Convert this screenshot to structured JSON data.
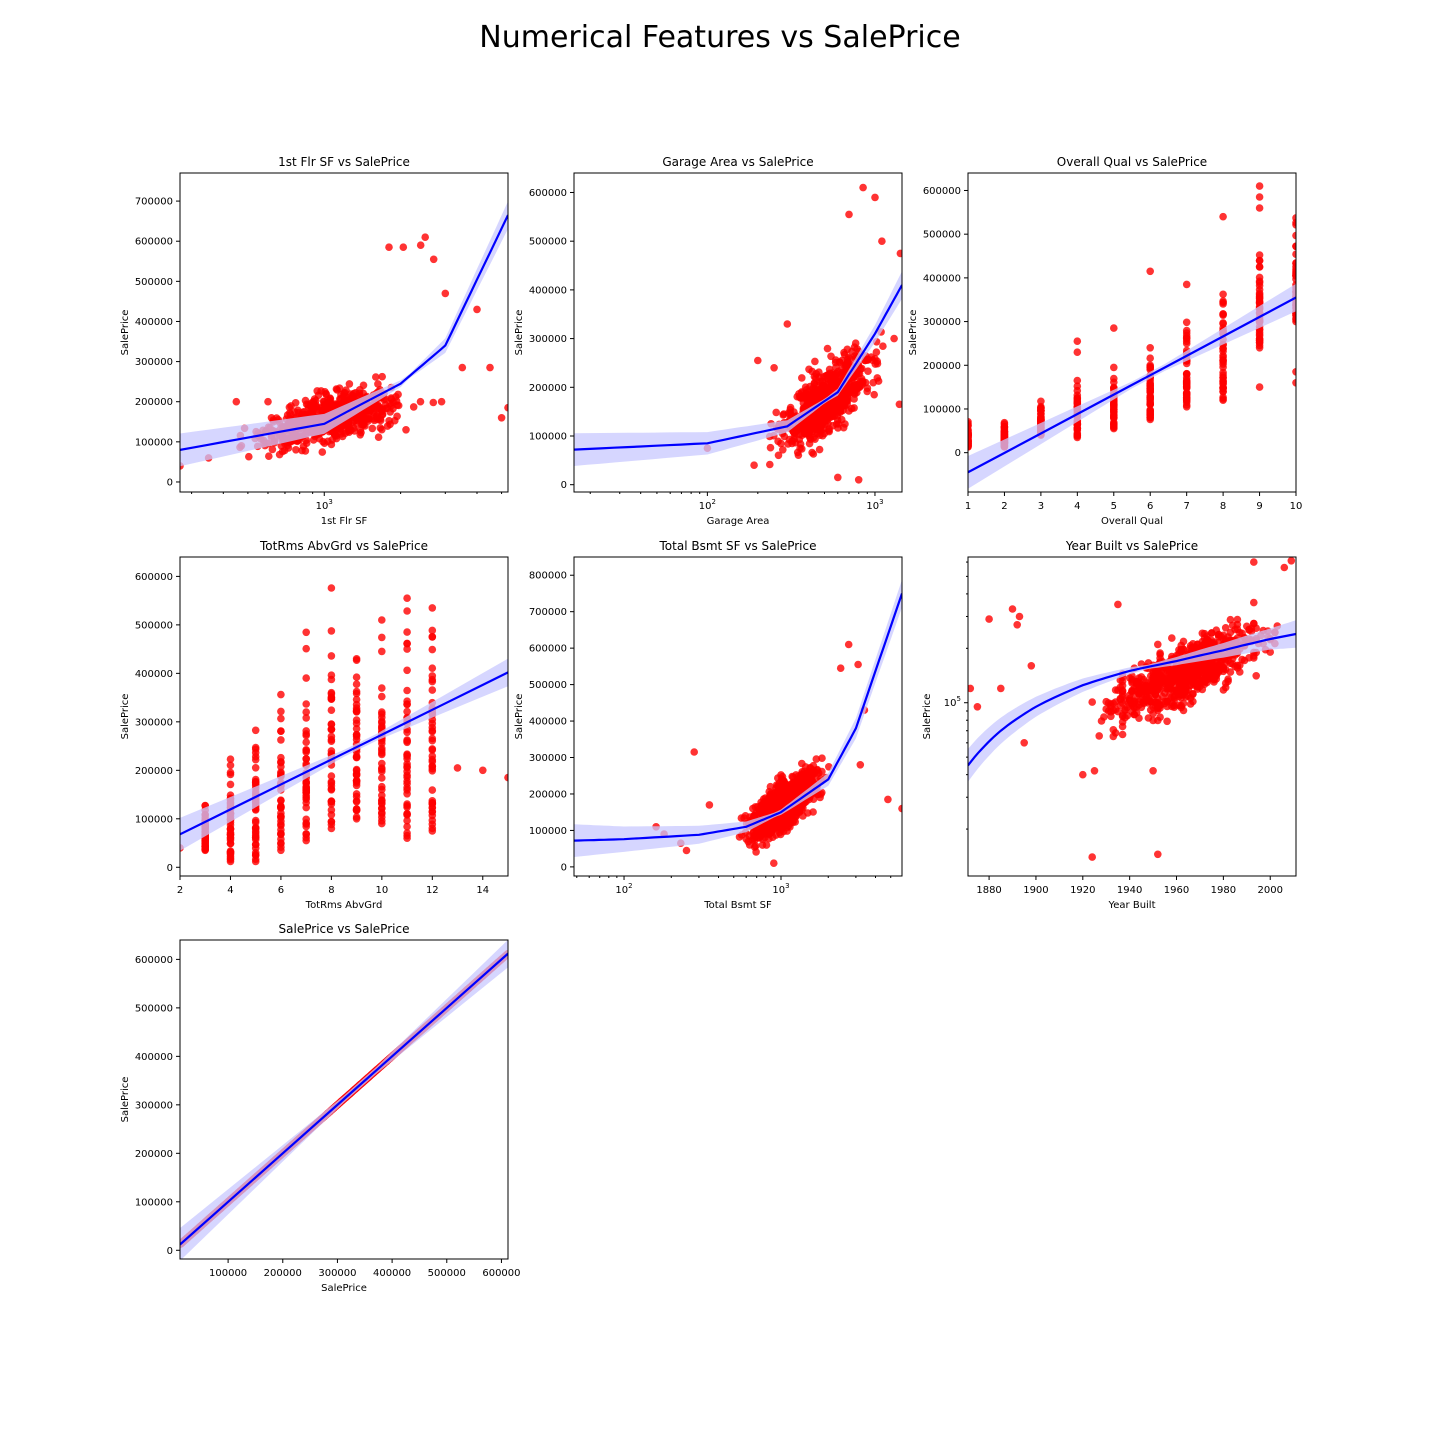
{
  "figure": {
    "title": "Numerical Features vs SalePrice"
  },
  "style": {
    "point_color": "#ff0000",
    "line_color": "#0000ff",
    "band_color": "#c8c8ff"
  },
  "chart_data": [
    {
      "type": "scatter",
      "title": "1st Flr SF vs SalePrice",
      "xlabel": "1st Flr SF",
      "ylabel": "SalePrice",
      "xscale": "log",
      "xlim": [
        270,
        5300
      ],
      "yscale": "linear",
      "ylim": [
        -25000,
        770000
      ],
      "xticks": [
        {
          "v": 1000,
          "label": "10",
          "exp": "3"
        }
      ],
      "yticks": [
        0,
        100000,
        200000,
        300000,
        400000,
        500000,
        600000,
        700000
      ],
      "regression": "exponential",
      "fit": [
        [
          270,
          80000
        ],
        [
          1000,
          145000
        ],
        [
          2000,
          245000
        ],
        [
          3000,
          340000
        ],
        [
          5300,
          665000
        ]
      ],
      "cloud": {
        "center": [
          1050,
          160000
        ],
        "spread": [
          0.22,
          45000
        ],
        "n": 700,
        "slope": 80000
      },
      "points": [
        [
          270,
          40000
        ],
        [
          5000,
          160000
        ],
        [
          5300,
          185000
        ],
        [
          4500,
          285000
        ],
        [
          3500,
          285000
        ],
        [
          2500,
          610000
        ],
        [
          2400,
          590000
        ],
        [
          2050,
          585000
        ],
        [
          1800,
          585000
        ],
        [
          2700,
          555000
        ],
        [
          3000,
          470000
        ],
        [
          4000,
          430000
        ],
        [
          600,
          200000
        ],
        [
          450,
          200000
        ],
        [
          350,
          60000
        ],
        [
          2900,
          200000
        ],
        [
          2100,
          130000
        ]
      ]
    },
    {
      "type": "scatter",
      "title": "Garage Area vs SalePrice",
      "xlabel": "Garage Area",
      "ylabel": "SalePrice",
      "xscale": "log",
      "xlim": [
        16,
        1450
      ],
      "yscale": "linear",
      "ylim": [
        -15000,
        640000
      ],
      "xticks": [
        {
          "v": 100,
          "label": "10",
          "exp": "2"
        },
        {
          "v": 1000,
          "label": "10",
          "exp": "3"
        }
      ],
      "yticks": [
        0,
        100000,
        200000,
        300000,
        400000,
        500000,
        600000
      ],
      "regression": "exponential",
      "fit": [
        [
          16,
          72000
        ],
        [
          100,
          85000
        ],
        [
          300,
          120000
        ],
        [
          600,
          190000
        ],
        [
          1000,
          310000
        ],
        [
          1450,
          410000
        ]
      ],
      "cloud": {
        "center": [
          520,
          175000
        ],
        "spread": [
          0.22,
          55000
        ],
        "n": 700,
        "slope": 120000
      },
      "points": [
        [
          100,
          75000
        ],
        [
          200,
          255000
        ],
        [
          250,
          240000
        ],
        [
          300,
          330000
        ],
        [
          850,
          610000
        ],
        [
          700,
          555000
        ],
        [
          1000,
          590000
        ],
        [
          1100,
          500000
        ],
        [
          1418,
          475000
        ],
        [
          1400,
          165000
        ],
        [
          1300,
          300000
        ],
        [
          800,
          10000
        ],
        [
          600,
          15000
        ],
        [
          190,
          40000
        ],
        [
          240,
          125000
        ]
      ]
    },
    {
      "type": "scatter",
      "title": "Overall Qual vs SalePrice",
      "xlabel": "Overall Qual",
      "ylabel": "SalePrice",
      "xscale": "linear",
      "xlim": [
        1,
        10
      ],
      "yscale": "linear",
      "ylim": [
        -90000,
        640000
      ],
      "xticks": [
        1,
        2,
        3,
        4,
        5,
        6,
        7,
        8,
        9,
        10
      ],
      "yticks": [
        0,
        100000,
        200000,
        300000,
        400000,
        500000,
        600000
      ],
      "regression": "linear",
      "fit": [
        [
          1,
          -45000
        ],
        [
          10,
          355000
        ]
      ],
      "strips": [
        [
          1,
          13000,
          82000
        ],
        [
          2,
          13000,
          80000
        ],
        [
          3,
          40000,
          140000
        ],
        [
          4,
          35000,
          200000
        ],
        [
          5,
          55000,
          240000
        ],
        [
          6,
          76000,
          290000
        ],
        [
          7,
          105000,
          340000
        ],
        [
          8,
          120000,
          440000
        ],
        [
          9,
          240000,
          500000
        ],
        [
          10,
          300000,
          560000
        ]
      ],
      "points": [
        [
          4,
          230000
        ],
        [
          4,
          255000
        ],
        [
          5,
          285000
        ],
        [
          6,
          415000
        ],
        [
          7,
          385000
        ],
        [
          8,
          540000
        ],
        [
          9,
          150000
        ],
        [
          9,
          560000
        ],
        [
          9,
          585000
        ],
        [
          9,
          610000
        ],
        [
          10,
          160000
        ],
        [
          10,
          185000
        ]
      ]
    },
    {
      "type": "scatter",
      "title": "TotRms AbvGrd vs SalePrice",
      "xlabel": "TotRms AbvGrd",
      "ylabel": "SalePrice",
      "xscale": "linear",
      "xlim": [
        2,
        15
      ],
      "yscale": "linear",
      "ylim": [
        -18000,
        640000
      ],
      "xticks": [
        2,
        4,
        6,
        8,
        10,
        12,
        14
      ],
      "yticks": [
        0,
        100000,
        200000,
        300000,
        400000,
        500000,
        600000
      ],
      "regression": "linear",
      "fit": [
        [
          2,
          68000
        ],
        [
          15,
          402000
        ]
      ],
      "strips": [
        [
          3,
          35000,
          155000
        ],
        [
          4,
          12000,
          270000
        ],
        [
          5,
          12000,
          390000
        ],
        [
          6,
          35000,
          375000
        ],
        [
          7,
          55000,
          500000
        ],
        [
          8,
          80000,
          590000
        ],
        [
          9,
          100000,
          500000
        ],
        [
          10,
          90000,
          555000
        ],
        [
          11,
          60000,
          610000
        ],
        [
          12,
          75000,
          580000
        ]
      ],
      "points": [
        [
          2,
          40000
        ],
        [
          13,
          205000
        ],
        [
          14,
          200000
        ],
        [
          15,
          185000
        ],
        [
          11,
          555000
        ],
        [
          12,
          535000
        ],
        [
          11,
          485000
        ],
        [
          12,
          475000
        ],
        [
          10,
          510000
        ],
        [
          9,
          430000
        ]
      ]
    },
    {
      "type": "scatter",
      "title": "Total Bsmt SF vs SalePrice",
      "xlabel": "Total Bsmt SF",
      "ylabel": "SalePrice",
      "xscale": "log",
      "xlim": [
        48,
        5900
      ],
      "yscale": "linear",
      "ylim": [
        -25000,
        850000
      ],
      "xticks": [
        {
          "v": 100,
          "label": "10",
          "exp": "2"
        },
        {
          "v": 1000,
          "label": "10",
          "exp": "3"
        }
      ],
      "yticks": [
        0,
        100000,
        200000,
        300000,
        400000,
        500000,
        600000,
        700000,
        800000
      ],
      "regression": "exponential",
      "fit": [
        [
          48,
          72000
        ],
        [
          100,
          76000
        ],
        [
          300,
          88000
        ],
        [
          600,
          110000
        ],
        [
          1000,
          150000
        ],
        [
          2000,
          240000
        ],
        [
          3000,
          380000
        ],
        [
          5900,
          750000
        ]
      ],
      "cloud": {
        "center": [
          1050,
          170000
        ],
        "spread": [
          0.18,
          55000
        ],
        "n": 750,
        "slope": 140000
      },
      "points": [
        [
          280,
          315000
        ],
        [
          160,
          110000
        ],
        [
          180,
          90000
        ],
        [
          230,
          65000
        ],
        [
          250,
          45000
        ],
        [
          350,
          170000
        ],
        [
          4800,
          185000
        ],
        [
          5900,
          160000
        ],
        [
          2700,
          610000
        ],
        [
          3100,
          555000
        ],
        [
          3200,
          280000
        ],
        [
          3400,
          430000
        ],
        [
          2400,
          545000
        ],
        [
          900,
          10000
        ]
      ]
    },
    {
      "type": "scatter",
      "title": "Year Built vs SalePrice",
      "xlabel": "Year Built",
      "ylabel": "SalePrice",
      "xscale": "linear",
      "xlim": [
        1871,
        2011
      ],
      "yscale": "log",
      "ylim": [
        11000,
        640000
      ],
      "xticks": [
        1880,
        1900,
        1920,
        1940,
        1960,
        1980,
        2000
      ],
      "yticks": [
        {
          "v": 100000,
          "label": "10",
          "exp": "5"
        }
      ],
      "regression": "logarithmic",
      "fit": [
        [
          1871,
          45000
        ],
        [
          1885,
          70000
        ],
        [
          1900,
          95000
        ],
        [
          1920,
          125000
        ],
        [
          1940,
          150000
        ],
        [
          1960,
          170000
        ],
        [
          1980,
          195000
        ],
        [
          2000,
          225000
        ],
        [
          2011,
          240000
        ]
      ],
      "cloud": {
        "center": [
          1965,
          150000
        ],
        "spread": [
          25,
          0.28
        ],
        "n": 800,
        "slope": 0.006,
        "xrange": [
          1900,
          2010
        ]
      },
      "points": [
        [
          1872,
          120000
        ],
        [
          1875,
          95000
        ],
        [
          1880,
          290000
        ],
        [
          1885,
          120000
        ],
        [
          1890,
          330000
        ],
        [
          1892,
          270000
        ],
        [
          1893,
          300000
        ],
        [
          1895,
          60000
        ],
        [
          1898,
          160000
        ],
        [
          1924,
          14000
        ],
        [
          1952,
          14500
        ],
        [
          1920,
          40000
        ],
        [
          1925,
          42000
        ],
        [
          1935,
          350000
        ],
        [
          1950,
          42000
        ],
        [
          1993,
          600000
        ],
        [
          2009,
          610000
        ],
        [
          2006,
          560000
        ]
      ]
    },
    {
      "type": "scatter",
      "title": "SalePrice vs SalePrice",
      "xlabel": "SalePrice",
      "ylabel": "SalePrice",
      "xscale": "linear",
      "xlim": [
        12000,
        612000
      ],
      "yscale": "linear",
      "ylim": [
        -18000,
        640000
      ],
      "xticks": [
        100000,
        200000,
        300000,
        400000,
        500000,
        600000
      ],
      "yticks": [
        0,
        100000,
        200000,
        300000,
        400000,
        500000,
        600000
      ],
      "regression": "linear",
      "fit": [
        [
          12000,
          12000
        ],
        [
          612000,
          612000
        ]
      ],
      "diagonal": {
        "from": 12789,
        "to": 611657,
        "n": 450
      }
    }
  ]
}
